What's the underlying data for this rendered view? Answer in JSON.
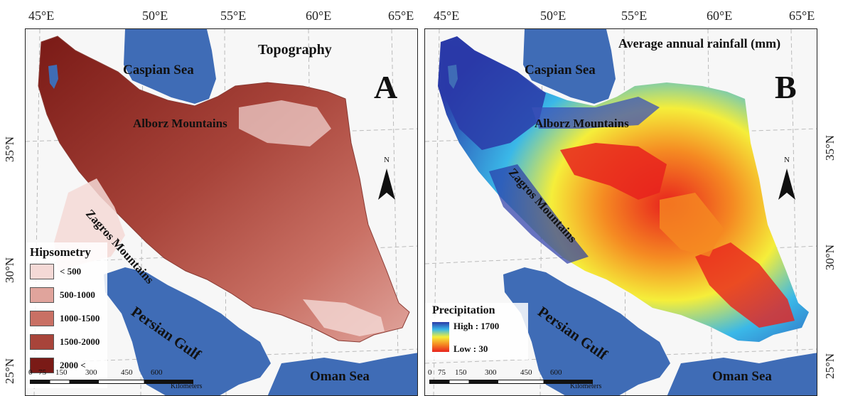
{
  "panels": [
    {
      "id": "A",
      "title": "Topography",
      "letter": "A",
      "labels": {
        "caspian": "Caspian Sea",
        "alborz": "Alborz Mountains",
        "zagros": "Zagros Mountains",
        "persian_gulf": "Persian Gulf",
        "oman_sea": "Oman Sea"
      },
      "legend": {
        "title": "Hipsometry",
        "classes": [
          {
            "label": "< 500",
            "color": "#f4d9d6"
          },
          {
            "label": "500-1000",
            "color": "#e0a49c"
          },
          {
            "label": "1000-1500",
            "color": "#c97064"
          },
          {
            "label": "1500-2000",
            "color": "#a8443a"
          },
          {
            "label": "2000 <",
            "color": "#7a1a16"
          }
        ]
      }
    },
    {
      "id": "B",
      "title": "Average annual rainfall (mm)",
      "letter": "B",
      "labels": {
        "caspian": "Caspian Sea",
        "alborz": "Alborz Mountains",
        "zagros": "Zagros Mountains",
        "persian_gulf": "Persian Gulf",
        "oman_sea": "Oman Sea"
      },
      "legend": {
        "title": "Precipitation",
        "high": "High : 1700",
        "low": "Low : 30",
        "ramp_colors": [
          "#2a3aa8",
          "#3ab8e8",
          "#f5ee3a",
          "#f58a22",
          "#e8221d"
        ]
      }
    }
  ],
  "graticule": {
    "lon_a": [
      "45°E",
      "50°E",
      "55°E",
      "60°E",
      "65°E"
    ],
    "lon_b": [
      "45°E",
      "50°E",
      "55°E",
      "60°E",
      "65°E"
    ],
    "lat": [
      "35°N",
      "30°N",
      "25°N"
    ]
  },
  "north": "N",
  "scale": {
    "ticks": [
      "0",
      "75",
      "150",
      "300",
      "450",
      "600"
    ],
    "unit": "Kilometers"
  },
  "colors": {
    "water": "#3f6cb6",
    "land_outside": "#f7f7f7"
  }
}
